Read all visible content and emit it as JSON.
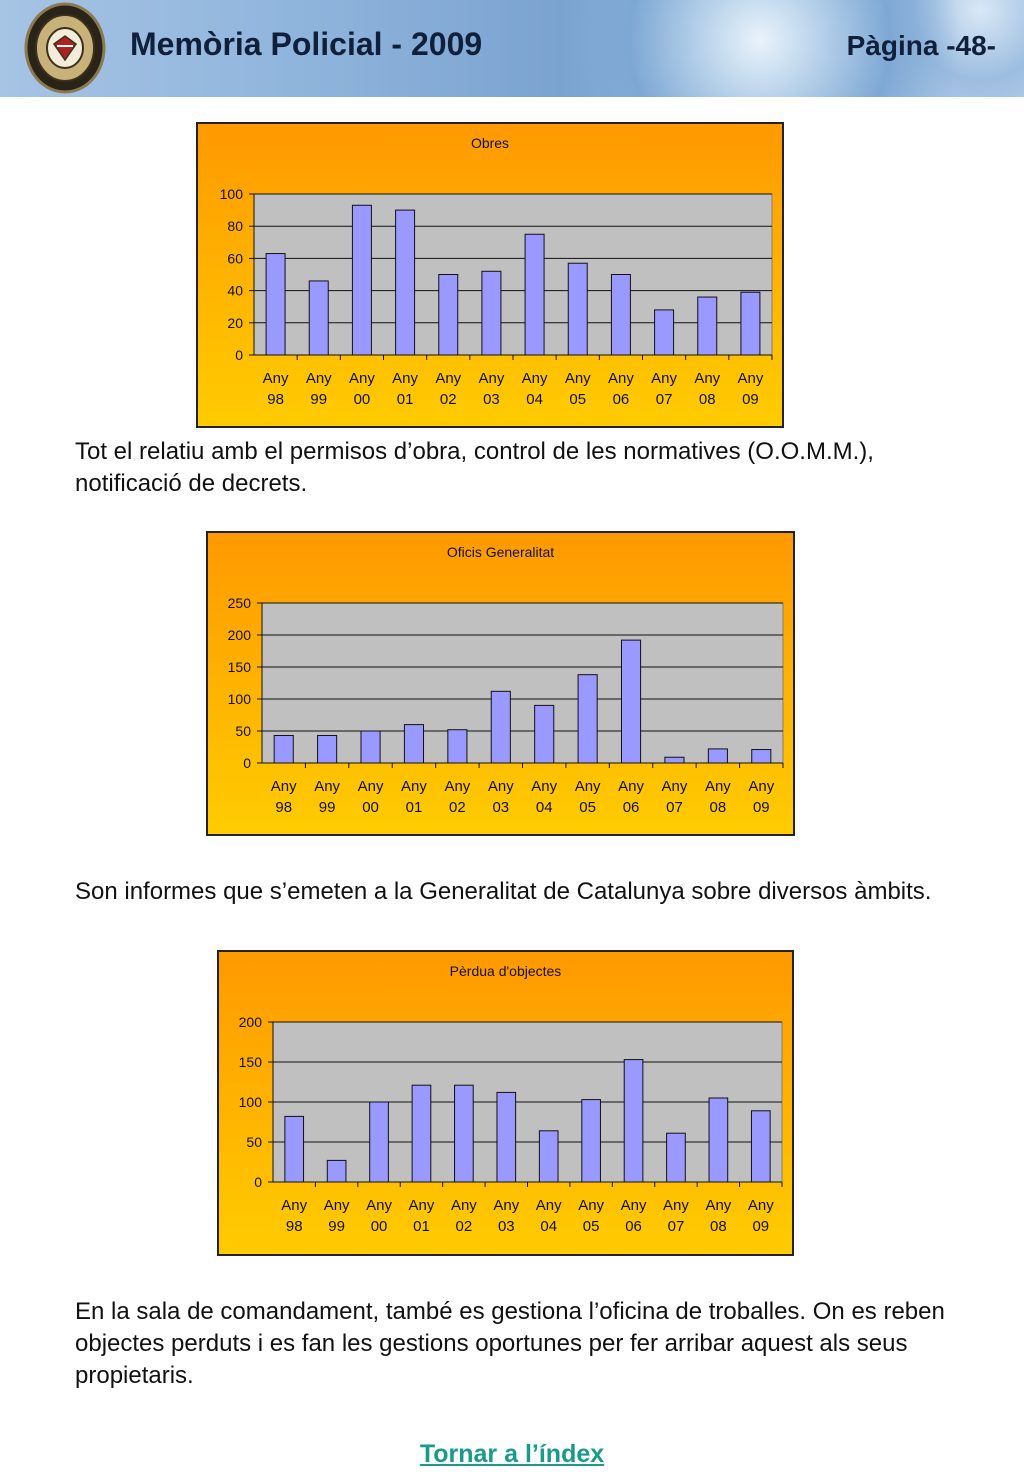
{
  "header": {
    "title": "Memòria Policial - 2009",
    "page": "Pàgina -48-"
  },
  "paragraphs": [
    "Tot el relatiu amb el permisos d’obra, control de les normatives (O.O.M.M.), notificació de decrets.",
    "Son informes que s’emeten a la Generalitat de Catalunya sobre diversos àmbits.",
    "En la sala de comandament, també es gestiona l’oficina de troballes. On es reben objectes perduts i es fan les gestions oportunes per fer arribar aquest als seus propietaris."
  ],
  "link": {
    "label": "Tornar a l’índex"
  },
  "colors": {
    "bar": "#9999ff",
    "plot_bg": "#c0c0c0",
    "frame_top": "#ff9900",
    "frame_bottom": "#ffcc00"
  },
  "chart_data": [
    {
      "type": "bar",
      "title": "Obres",
      "categories": [
        "Any 98",
        "Any 99",
        "Any 00",
        "Any 01",
        "Any 02",
        "Any 03",
        "Any 04",
        "Any 05",
        "Any 06",
        "Any 07",
        "Any 08",
        "Any 09"
      ],
      "values": [
        63,
        46,
        93,
        90,
        50,
        52,
        75,
        57,
        50,
        28,
        36,
        39
      ],
      "ylim": [
        0,
        100
      ],
      "yticks": [
        0,
        20,
        40,
        60,
        80,
        100
      ],
      "grid": true,
      "legend": "none"
    },
    {
      "type": "bar",
      "title": "Oficis Generalitat",
      "categories": [
        "Any 98",
        "Any 99",
        "Any 00",
        "Any 01",
        "Any 02",
        "Any 03",
        "Any 04",
        "Any 05",
        "Any 06",
        "Any 07",
        "Any 08",
        "Any 09"
      ],
      "values": [
        43,
        43,
        50,
        60,
        52,
        112,
        90,
        138,
        192,
        9,
        22,
        21
      ],
      "ylim": [
        0,
        250
      ],
      "yticks": [
        0,
        50,
        100,
        150,
        200,
        250
      ],
      "grid": true,
      "legend": "none"
    },
    {
      "type": "bar",
      "title": "Pèrdua d'objectes",
      "categories": [
        "Any 98",
        "Any 99",
        "Any 00",
        "Any 01",
        "Any 02",
        "Any 03",
        "Any 04",
        "Any 05",
        "Any 06",
        "Any 07",
        "Any 08",
        "Any 09"
      ],
      "values": [
        82,
        27,
        100,
        121,
        121,
        112,
        64,
        103,
        153,
        61,
        105,
        89
      ],
      "ylim": [
        0,
        200
      ],
      "yticks": [
        0,
        50,
        100,
        150,
        200
      ],
      "grid": true,
      "legend": "none"
    }
  ]
}
